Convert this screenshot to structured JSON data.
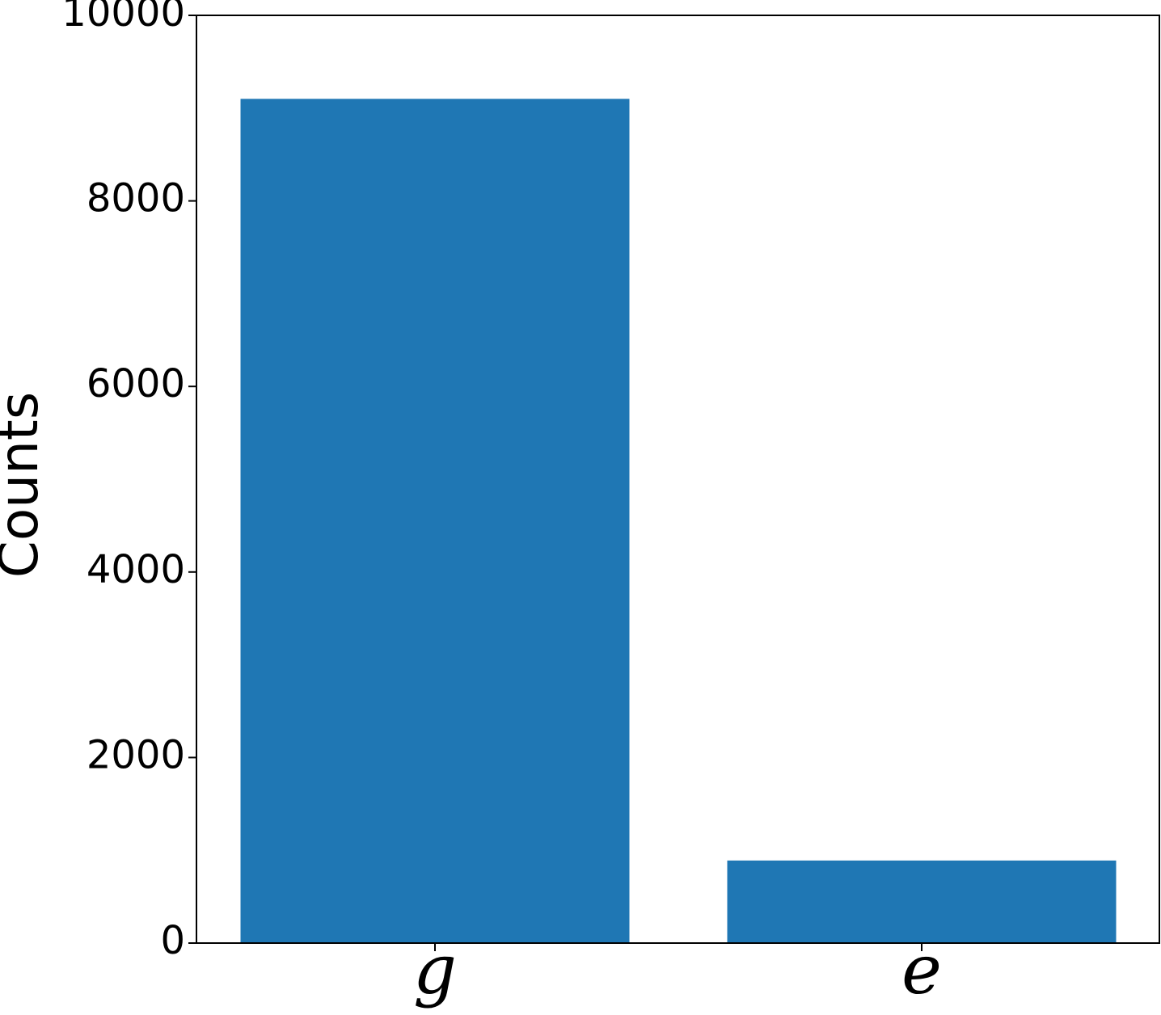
{
  "chart_data": {
    "type": "bar",
    "ylabel": "Counts",
    "categories": [
      "g",
      "e"
    ],
    "values": [
      9100,
      890
    ],
    "color": "#1f77b4",
    "ylim": [
      0,
      10000
    ],
    "yticks": [
      0,
      2000,
      4000,
      6000,
      8000,
      10000
    ],
    "grid": false
  }
}
